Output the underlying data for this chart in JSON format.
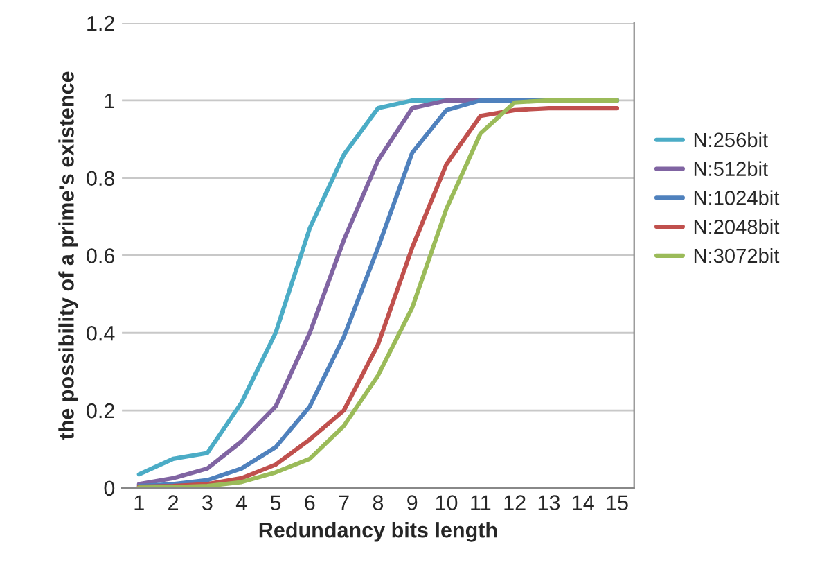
{
  "chart_data": {
    "type": "line",
    "xlabel": "Redundancy bits length",
    "ylabel": "the possibility of a prime's existence",
    "categories": [
      "1",
      "2",
      "3",
      "4",
      "5",
      "6",
      "7",
      "8",
      "9",
      "10",
      "11",
      "12",
      "13",
      "14",
      "15"
    ],
    "series": [
      {
        "name": "N:256bit",
        "color": "#4bacc6",
        "values": [
          0.035,
          0.075,
          0.09,
          0.22,
          0.4,
          0.67,
          0.86,
          0.98,
          1.0,
          1.0,
          1.0,
          1.0,
          1.0,
          1.0,
          1.0
        ]
      },
      {
        "name": "N:512bit",
        "color": "#8064a2",
        "values": [
          0.01,
          0.025,
          0.05,
          0.12,
          0.21,
          0.4,
          0.64,
          0.845,
          0.98,
          1.0,
          1.0,
          1.0,
          1.0,
          1.0,
          1.0
        ]
      },
      {
        "name": "N:1024bit",
        "color": "#4f81bd",
        "values": [
          0.005,
          0.01,
          0.02,
          0.05,
          0.105,
          0.21,
          0.39,
          0.62,
          0.865,
          0.975,
          1.0,
          1.0,
          1.0,
          1.0,
          1.0
        ]
      },
      {
        "name": "N:2048bit",
        "color": "#c0504d",
        "values": [
          0.003,
          0.005,
          0.01,
          0.025,
          0.06,
          0.125,
          0.2,
          0.37,
          0.62,
          0.835,
          0.96,
          0.975,
          0.98,
          0.98,
          0.98
        ]
      },
      {
        "name": "N:3072bit",
        "color": "#9bbb59",
        "values": [
          0.001,
          0.002,
          0.005,
          0.015,
          0.04,
          0.075,
          0.16,
          0.29,
          0.465,
          0.72,
          0.915,
          0.995,
          1.0,
          1.0,
          1.0
        ]
      }
    ],
    "ylim": [
      0,
      1.2
    ],
    "yticks": [
      0,
      0.2,
      0.4,
      0.6,
      0.8,
      1,
      1.2
    ],
    "grid": "y",
    "legend": "right",
    "marker": "none",
    "line_style": "solid"
  }
}
